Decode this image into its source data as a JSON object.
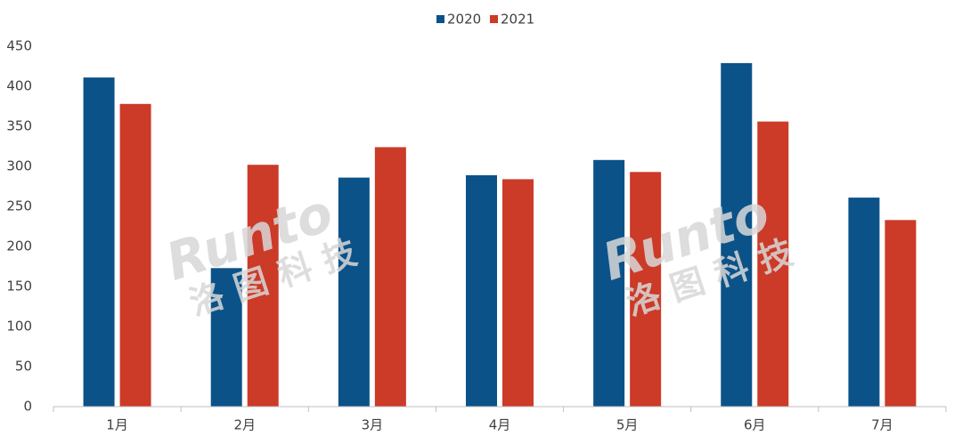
{
  "chart_data": {
    "type": "bar",
    "categories": [
      "1月",
      "2月",
      "3月",
      "4月",
      "5月",
      "6月",
      "7月"
    ],
    "series": [
      {
        "name": "2020",
        "color": "#0b5288",
        "values": [
          411,
          173,
          286,
          289,
          308,
          429,
          261
        ]
      },
      {
        "name": "2021",
        "color": "#cc3a28",
        "values": [
          378,
          302,
          324,
          284,
          293,
          356,
          233
        ]
      }
    ],
    "ylim": [
      0,
      450
    ],
    "yticks": [
      0,
      50,
      100,
      150,
      200,
      250,
      300,
      350,
      400,
      450
    ],
    "grid": false,
    "legend": "top",
    "watermark": {
      "logo": "Runto",
      "name": "洛图科技"
    }
  }
}
